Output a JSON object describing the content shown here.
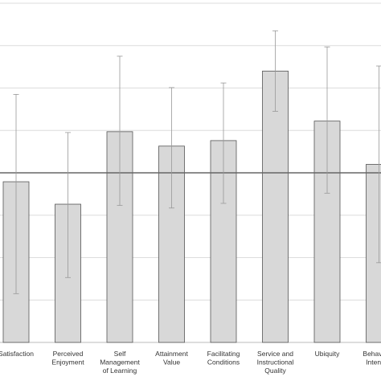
{
  "chart_data": {
    "type": "bar",
    "categories": [
      "Satisfaction",
      "Perceived Enjoyment",
      "Self Management of Learning",
      "Attainment Value",
      "Facilitating Conditions",
      "Service and Instructional Quality",
      "Ubiquity",
      "Behavioral Intention"
    ],
    "category_lines": [
      [
        "Satisfaction"
      ],
      [
        "Perceived",
        "Enjoyment"
      ],
      [
        "Self",
        "Management",
        "of Learning"
      ],
      [
        "Attainment",
        "Value"
      ],
      [
        "Facilitating",
        "Conditions"
      ],
      [
        "Service and",
        "Instructional",
        "Quality"
      ],
      [
        "Ubiquity"
      ],
      [
        "Behavioral",
        "Intention"
      ]
    ],
    "values": [
      -0.21,
      -0.74,
      0.97,
      0.63,
      0.76,
      2.4,
      1.22,
      0.2
    ],
    "error_low": [
      -2.85,
      -2.47,
      -0.77,
      -0.83,
      -0.72,
      1.45,
      -0.48,
      -2.12
    ],
    "error_high": [
      1.85,
      0.95,
      2.75,
      2.01,
      2.12,
      3.35,
      2.97,
      2.52
    ],
    "reference_line": 0,
    "ylim": [
      -4,
      4
    ],
    "grid": true,
    "title": "",
    "xlabel": "",
    "ylabel": ""
  },
  "colors": {
    "bar_fill": "#d8d8d8",
    "bar_stroke": "#555555",
    "grid": "#dcdcdc",
    "reference_line": "#666666",
    "error_bar": "#999999"
  }
}
